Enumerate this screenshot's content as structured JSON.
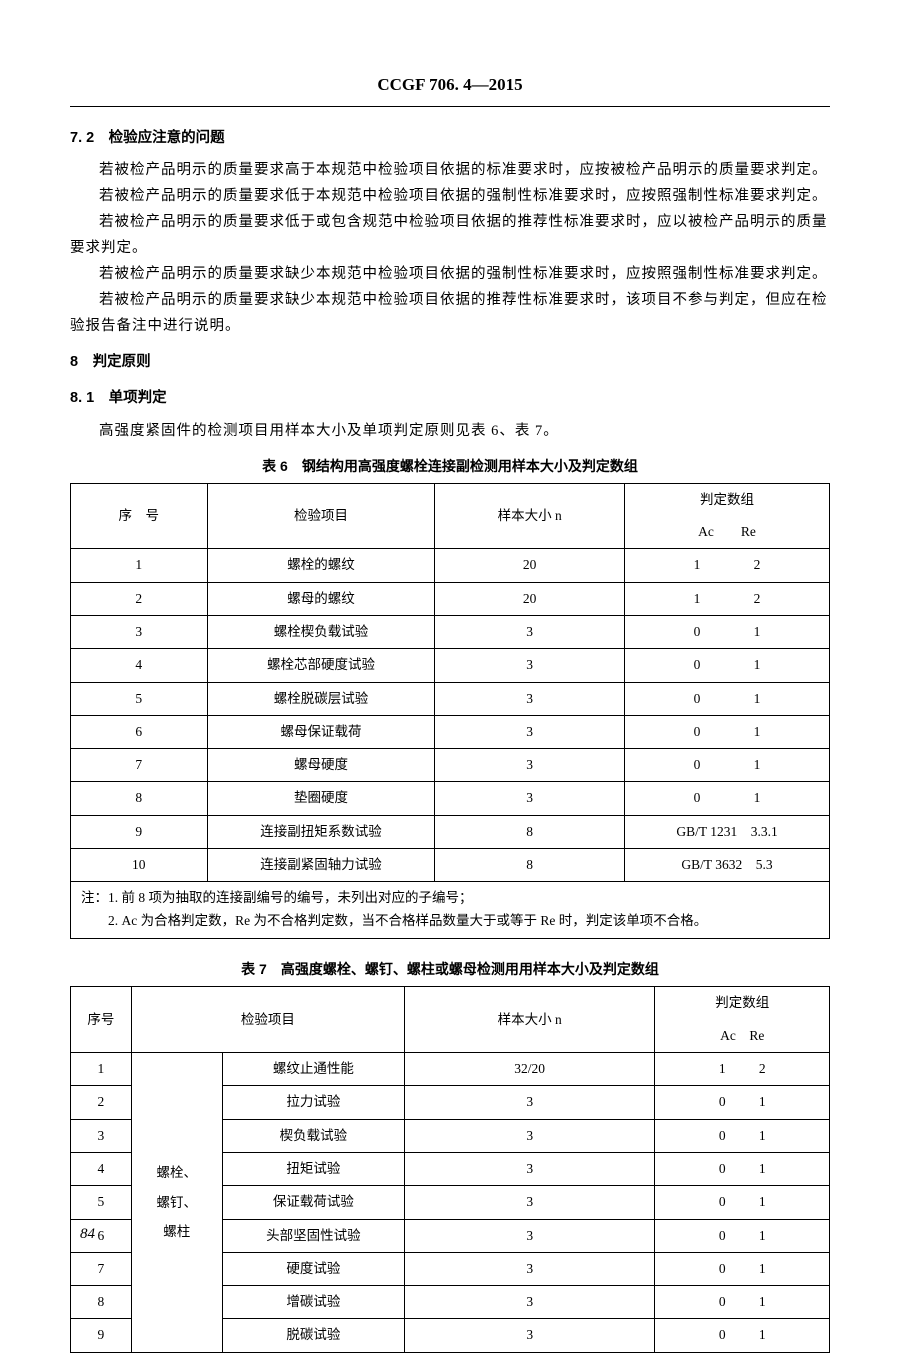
{
  "header": {
    "title": "CCGF 706. 4—2015"
  },
  "section_7_2": {
    "heading": "7. 2　检验应注意的问题",
    "paras": [
      "若被检产品明示的质量要求高于本规范中检验项目依据的标准要求时，应按被检产品明示的质量要求判定。",
      "若被检产品明示的质量要求低于本规范中检验项目依据的强制性标准要求时，应按照强制性标准要求判定。",
      "若被检产品明示的质量要求低于或包含规范中检验项目依据的推荐性标准要求时，应以被检产品明示的质量要求判定。",
      "若被检产品明示的质量要求缺少本规范中检验项目依据的强制性标准要求时，应按照强制性标准要求判定。",
      "若被检产品明示的质量要求缺少本规范中检验项目依据的推荐性标准要求时，该项目不参与判定，但应在检验报告备注中进行说明。"
    ]
  },
  "section_8": {
    "heading": "8　判定原则"
  },
  "section_8_1": {
    "heading": "8. 1　单项判定",
    "para": "高强度紧固件的检测项目用样本大小及单项判定原则见表 6、表 7。"
  },
  "table6": {
    "caption": "表 6　钢结构用高强度螺栓连接副检测用样本大小及判定数组",
    "headers": {
      "seq": "序　号",
      "item": "检验项目",
      "sample": "样本大小 n",
      "group": "判定数组",
      "ac_re": "Ac　　Re"
    },
    "rows": [
      {
        "seq": "1",
        "item": "螺栓的螺纹",
        "sample": "20",
        "ac": "1",
        "re": "2"
      },
      {
        "seq": "2",
        "item": "螺母的螺纹",
        "sample": "20",
        "ac": "1",
        "re": "2"
      },
      {
        "seq": "3",
        "item": "螺栓楔负载试验",
        "sample": "3",
        "ac": "0",
        "re": "1"
      },
      {
        "seq": "4",
        "item": "螺栓芯部硬度试验",
        "sample": "3",
        "ac": "0",
        "re": "1"
      },
      {
        "seq": "5",
        "item": "螺栓脱碳层试验",
        "sample": "3",
        "ac": "0",
        "re": "1"
      },
      {
        "seq": "6",
        "item": "螺母保证载荷",
        "sample": "3",
        "ac": "0",
        "re": "1"
      },
      {
        "seq": "7",
        "item": "螺母硬度",
        "sample": "3",
        "ac": "0",
        "re": "1"
      },
      {
        "seq": "8",
        "item": "垫圈硬度",
        "sample": "3",
        "ac": "0",
        "re": "1"
      },
      {
        "seq": "9",
        "item": "连接副扭矩系数试验",
        "sample": "8",
        "acre": "GB/T 1231　3.3.1"
      },
      {
        "seq": "10",
        "item": "连接副紧固轴力试验",
        "sample": "8",
        "acre": "GB/T 3632　5.3"
      }
    ],
    "footnote_1": "注：1. 前 8 项为抽取的连接副编号的编号，未列出对应的子编号；",
    "footnote_2": "　　2. Ac 为合格判定数，Re 为不合格判定数，当不合格样品数量大于或等于 Re 时，判定该单项不合格。"
  },
  "table7": {
    "caption": "表 7　高强度螺栓、螺钉、螺柱或螺母检测用用样本大小及判定数组",
    "headers": {
      "seq": "序号",
      "item": "检验项目",
      "sample": "样本大小 n",
      "group": "判定数组",
      "ac_re": "Ac　Re"
    },
    "row_group": "螺栓、\n螺钉、\n螺柱",
    "rows": [
      {
        "seq": "1",
        "item": "螺纹止通性能",
        "sample": "32/20",
        "ac": "1",
        "re": "2"
      },
      {
        "seq": "2",
        "item": "拉力试验",
        "sample": "3",
        "ac": "0",
        "re": "1"
      },
      {
        "seq": "3",
        "item": "楔负载试验",
        "sample": "3",
        "ac": "0",
        "re": "1"
      },
      {
        "seq": "4",
        "item": "扭矩试验",
        "sample": "3",
        "ac": "0",
        "re": "1"
      },
      {
        "seq": "5",
        "item": "保证载荷试验",
        "sample": "3",
        "ac": "0",
        "re": "1"
      },
      {
        "seq": "6",
        "item": "头部坚固性试验",
        "sample": "3",
        "ac": "0",
        "re": "1"
      },
      {
        "seq": "7",
        "item": "硬度试验",
        "sample": "3",
        "ac": "0",
        "re": "1"
      },
      {
        "seq": "8",
        "item": "增碳试验",
        "sample": "3",
        "ac": "0",
        "re": "1"
      },
      {
        "seq": "9",
        "item": "脱碳试验",
        "sample": "3",
        "ac": "0",
        "re": "1"
      }
    ]
  },
  "page_number": "84"
}
